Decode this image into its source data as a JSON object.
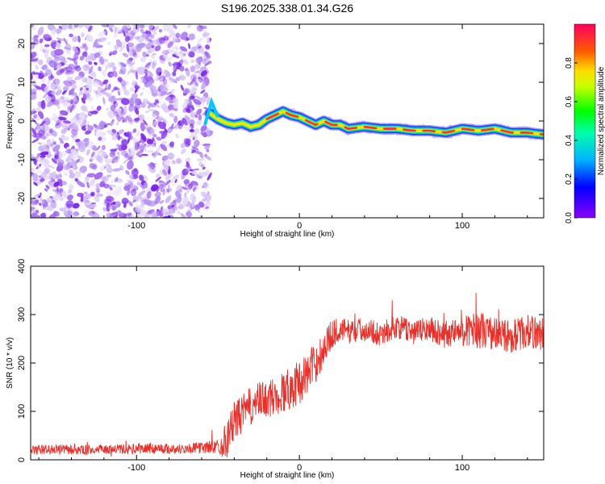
{
  "title": "S196.2025.338.01.34.G26",
  "chart_data": [
    {
      "type": "heatmap",
      "xlabel": "Height of straight line (km)",
      "ylabel": "Frequency (Hz)",
      "xlim": [
        -165,
        150
      ],
      "ylim": [
        -25,
        25
      ],
      "xticks": [
        -100,
        0,
        100
      ],
      "yticks": [
        -20,
        -10,
        0,
        10,
        20
      ],
      "noise_region_x": [
        -165,
        -55
      ],
      "signal_track": {
        "x": [
          -55,
          -50,
          -45,
          -40,
          -35,
          -30,
          -25,
          -20,
          -15,
          -10,
          -5,
          0,
          5,
          10,
          15,
          20,
          25,
          30,
          40,
          50,
          60,
          70,
          80,
          90,
          100,
          110,
          120,
          130,
          140,
          150
        ],
        "y": [
          2.0,
          0.5,
          -0.5,
          -1.0,
          -0.5,
          -1.5,
          -1.0,
          0.5,
          1.5,
          2.5,
          1.5,
          1.0,
          0.0,
          -1.0,
          0.0,
          -1.0,
          -1.0,
          -2.0,
          -1.5,
          -2.0,
          -2.0,
          -2.5,
          -2.5,
          -3.0,
          -2.0,
          -2.5,
          -2.0,
          -3.0,
          -3.0,
          -3.5
        ]
      },
      "colorbar": {
        "label": "Normalized spectral amplitude",
        "range": [
          0.0,
          1.0
        ],
        "ticks": [
          0.0,
          0.2,
          0.4,
          0.6,
          0.8
        ]
      }
    },
    {
      "type": "line",
      "xlabel": "Height of straight line (km)",
      "ylabel": "SNR (10 * v/v)",
      "xlim": [
        -165,
        150
      ],
      "ylim": [
        0,
        400
      ],
      "xticks": [
        -100,
        0,
        100
      ],
      "yticks": [
        0,
        100,
        200,
        300,
        400
      ],
      "series": [
        {
          "name": "SNR",
          "color": "#e8302a",
          "x": [
            -165,
            -150,
            -135,
            -120,
            -105,
            -90,
            -75,
            -60,
            -50,
            -45,
            -40,
            -35,
            -30,
            -25,
            -20,
            -15,
            -10,
            -5,
            0,
            5,
            10,
            15,
            20,
            25,
            30,
            40,
            50,
            60,
            70,
            80,
            90,
            100,
            110,
            120,
            130,
            140,
            150
          ],
          "y": [
            20,
            22,
            20,
            21,
            22,
            24,
            22,
            25,
            28,
            40,
            80,
            95,
            110,
            120,
            125,
            130,
            140,
            150,
            160,
            180,
            200,
            230,
            260,
            270,
            265,
            270,
            260,
            275,
            265,
            270,
            260,
            265,
            270,
            260,
            255,
            265,
            260
          ],
          "noise_amplitude": [
            10,
            10,
            10,
            10,
            10,
            12,
            10,
            12,
            15,
            40,
            40,
            40,
            40,
            40,
            40,
            40,
            45,
            45,
            45,
            45,
            40,
            40,
            30,
            25,
            25,
            25,
            25,
            25,
            25,
            25,
            30,
            30,
            40,
            35,
            35,
            35,
            35
          ]
        }
      ]
    }
  ]
}
